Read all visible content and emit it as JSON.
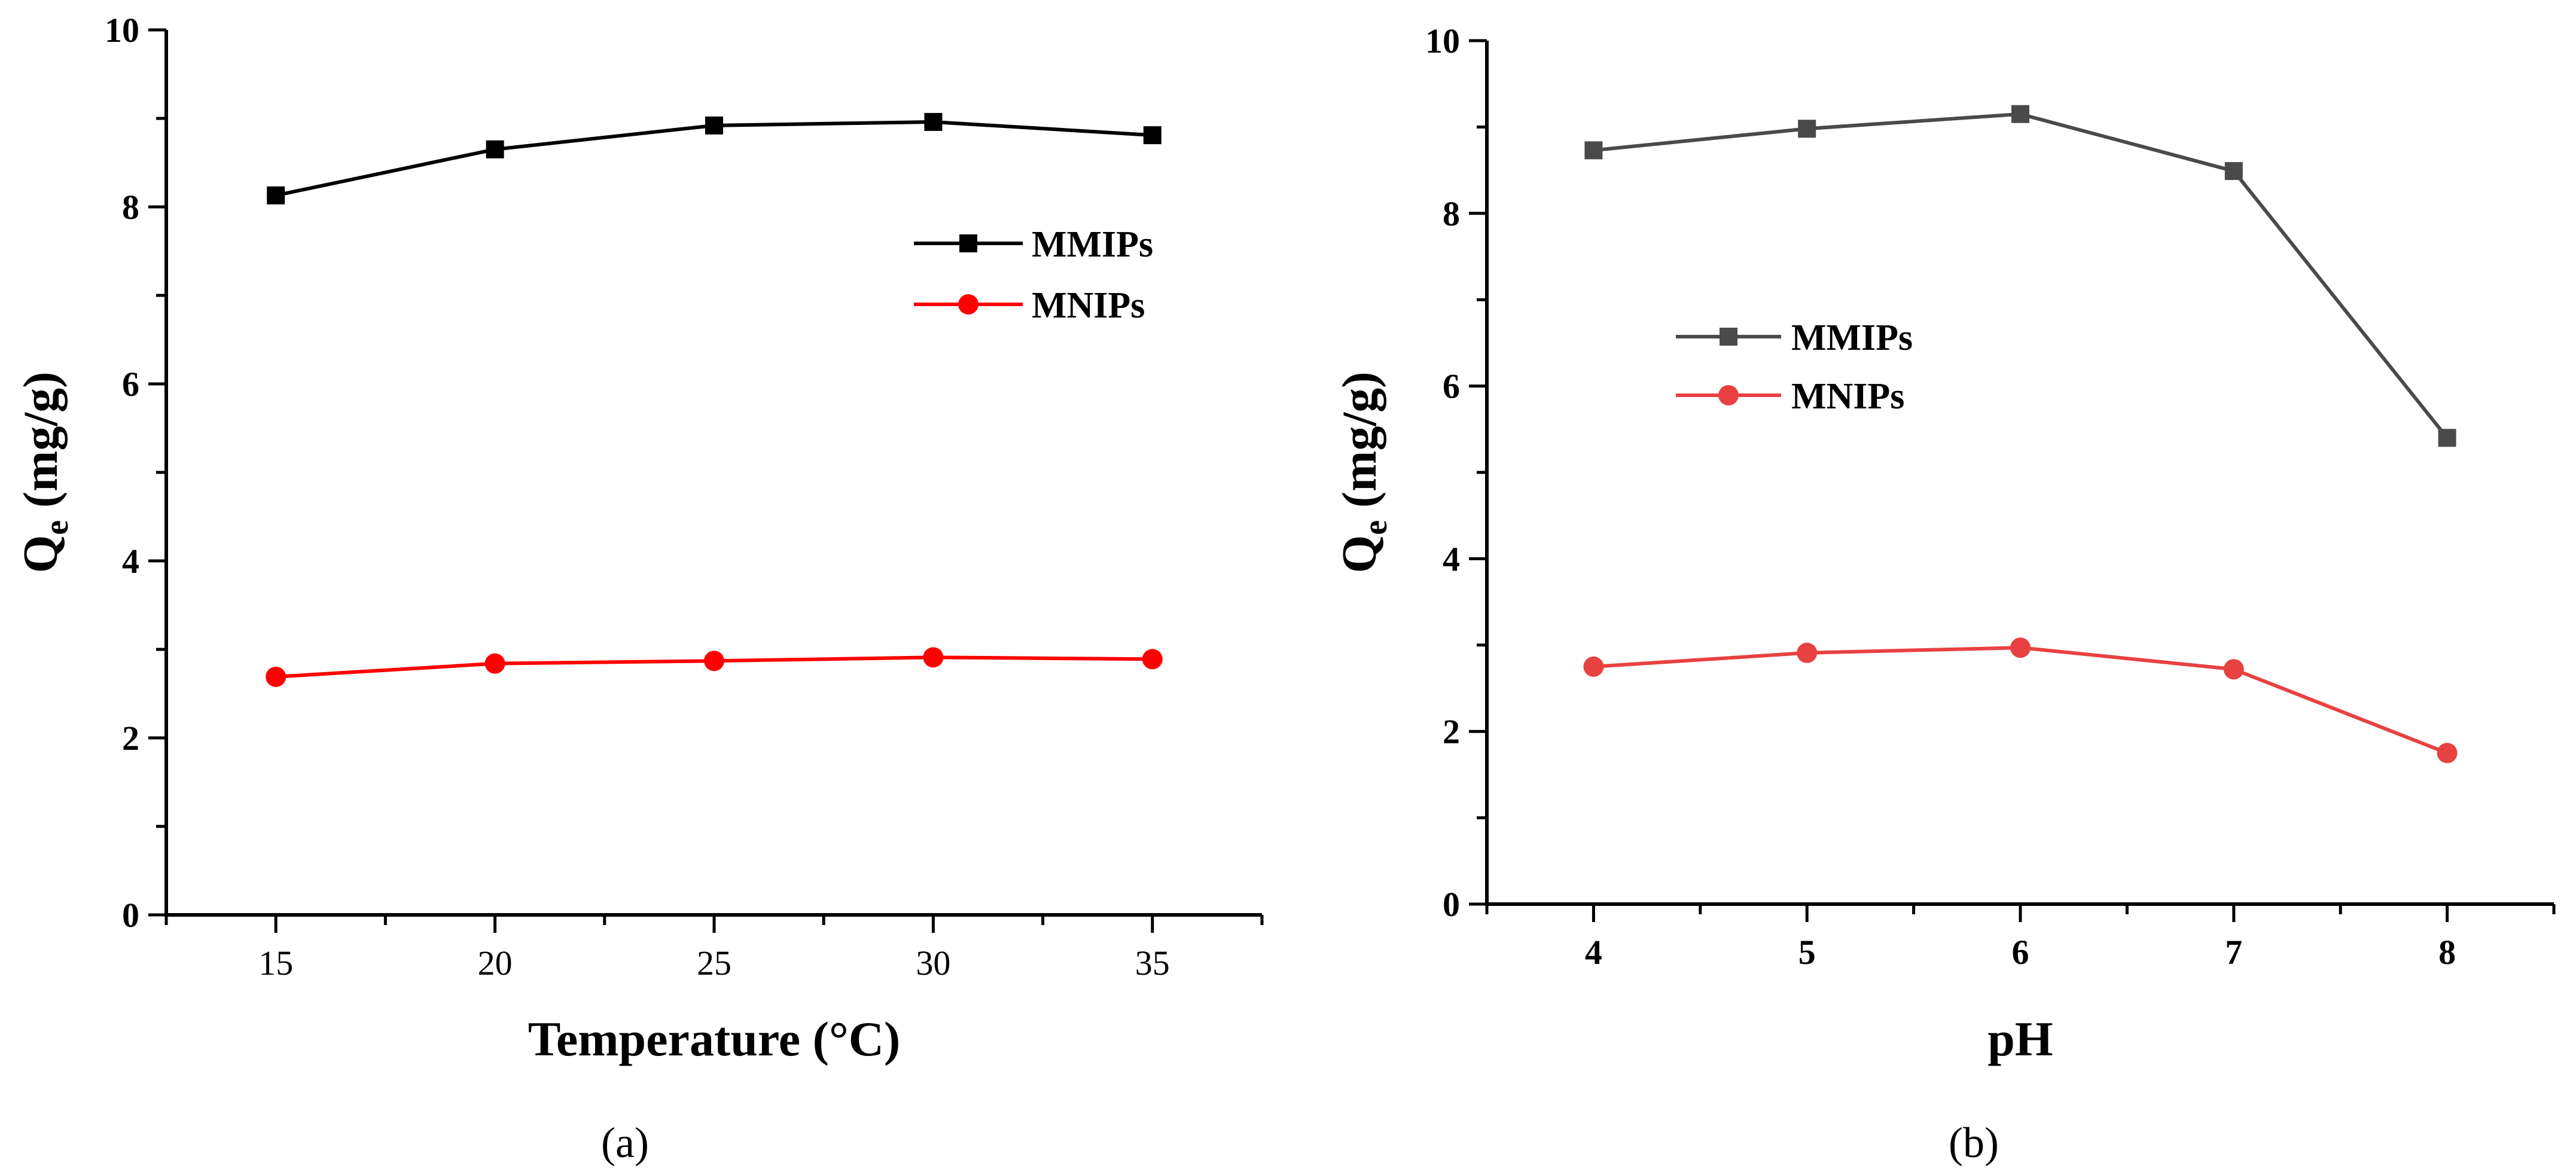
{
  "chart_data": [
    {
      "type": "line",
      "panel_label": "(a)",
      "x": [
        15,
        20,
        25,
        30,
        35
      ],
      "xlim": [
        12.5,
        37.5
      ],
      "x_major_ticks": [
        15,
        20,
        25,
        30,
        35
      ],
      "x_tick_labels": [
        "15",
        "20",
        "25",
        "30",
        "35"
      ],
      "x_tick_bold": false,
      "ylim": [
        0,
        10
      ],
      "y_ticks": [
        0,
        2,
        4,
        6,
        8,
        10
      ],
      "y_tick_labels": [
        "0",
        "2",
        "4",
        "6",
        "8",
        "10"
      ],
      "xlabel": "Temperature (°C)",
      "ylabel_main": "Q",
      "ylabel_sub": "e",
      "ylabel_rest": " (mg/g)",
      "legend_position": "upper-right",
      "series": [
        {
          "name": "MMIPs",
          "marker": "square",
          "color": "#000000",
          "values": [
            8.13,
            8.65,
            8.92,
            8.96,
            8.81
          ]
        },
        {
          "name": "MNIPs",
          "marker": "circle",
          "color": "#ff0000",
          "values": [
            2.69,
            2.84,
            2.87,
            2.91,
            2.89
          ]
        }
      ]
    },
    {
      "type": "line",
      "panel_label": "(b)",
      "x": [
        4,
        5,
        6,
        7,
        8
      ],
      "xlim": [
        3.5,
        8.5
      ],
      "x_major_ticks": [
        4,
        5,
        6,
        7,
        8
      ],
      "x_tick_labels": [
        "4",
        "5",
        "6",
        "7",
        "8"
      ],
      "x_tick_bold": true,
      "ylim": [
        0,
        10
      ],
      "y_ticks": [
        0,
        2,
        4,
        6,
        8,
        10
      ],
      "y_tick_labels": [
        "0",
        "2",
        "4",
        "6",
        "8",
        "10"
      ],
      "xlabel": "pH",
      "ylabel_main": "Q",
      "ylabel_sub": "e",
      "ylabel_rest": " (mg/g)",
      "legend_position": "center-left",
      "series": [
        {
          "name": "MMIPs",
          "marker": "square",
          "color": "#4a4a4a",
          "values": [
            8.73,
            8.98,
            9.15,
            8.49,
            5.4
          ]
        },
        {
          "name": "MNIPs",
          "marker": "circle",
          "color": "#e84141",
          "values": [
            2.75,
            2.91,
            2.97,
            2.72,
            1.75
          ]
        }
      ]
    }
  ]
}
